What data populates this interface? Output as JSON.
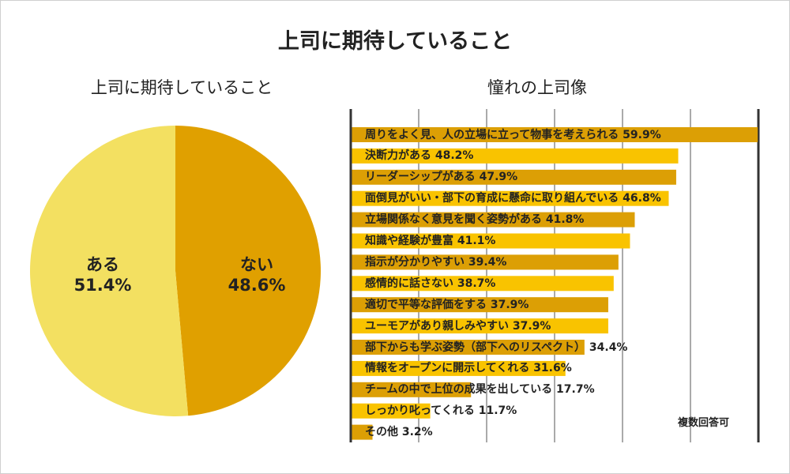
{
  "title": "上司に期待していること",
  "colors": {
    "light": "#f3e061",
    "dark": "#e0a000",
    "bar_light": "#f9c300",
    "bar_dark": "#dc9f05",
    "grid": "#aaaaaa",
    "axis": "#333333"
  },
  "chart_data": [
    {
      "type": "pie",
      "title": "上司に期待していること",
      "slices": [
        {
          "label": "ない",
          "value": 48.6,
          "value_label": "48.6%"
        },
        {
          "label": "ある",
          "value": 51.4,
          "value_label": "51.4%"
        }
      ]
    },
    {
      "type": "bar",
      "orientation": "horizontal",
      "title": "憧れの上司像",
      "note": "複数回答可",
      "xlim": [
        0,
        60
      ],
      "gridlines": [
        0,
        10,
        20,
        30,
        40,
        50,
        60
      ],
      "categories": [
        "周りをよく見、人の立場に立って物事を考えられる 59.9%",
        "決断力がある 48.2%",
        "リーダーシップがある 47.9%",
        "面倒見がいい・部下の育成に懸命に取り組んでいる 46.8%",
        "立場関係なく意見を聞く姿勢がある 41.8%",
        "知識や経験が豊富 41.1%",
        "指示が分かりやすい 39.4%",
        "感情的に話さない 38.7%",
        "適切で平等な評価をする 37.9%",
        "ユーモアがあり親しみやすい 37.9%",
        "部下からも学ぶ姿勢（部下へのリスペクト） 34.4%",
        "情報をオープンに開示してくれる 31.6%",
        "チームの中で上位の成果を出している 17.7%",
        "しっかり叱ってくれる 11.7%",
        "その他 3.2%"
      ],
      "values": [
        59.9,
        48.2,
        47.9,
        46.8,
        41.8,
        41.1,
        39.4,
        38.7,
        37.9,
        37.9,
        34.4,
        31.6,
        17.7,
        11.7,
        3.2
      ]
    }
  ]
}
